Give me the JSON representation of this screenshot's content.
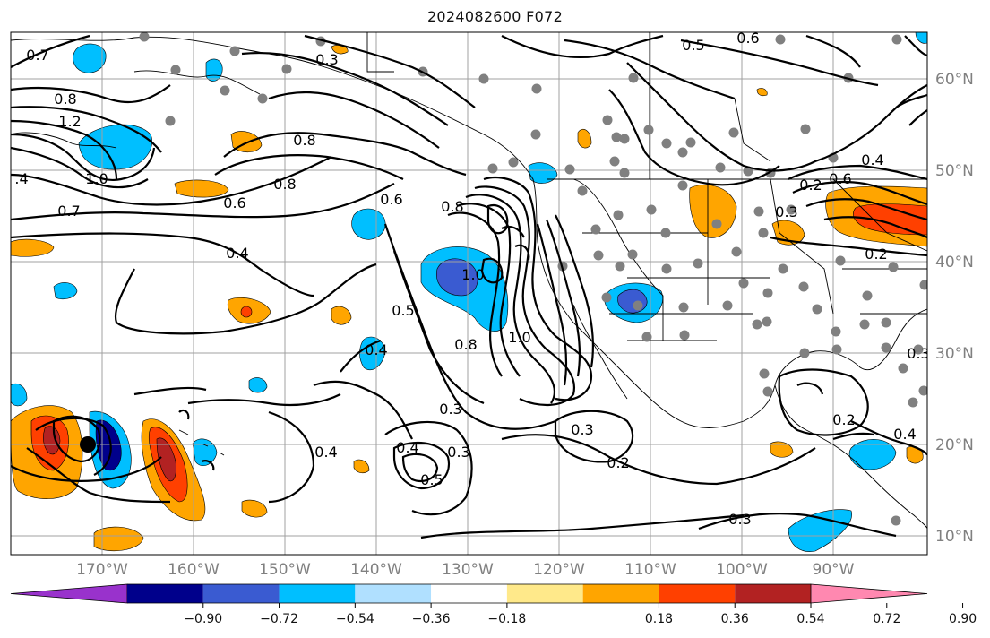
{
  "title": "2024082600 F072",
  "lat_labels": [
    "60°N",
    "50°N",
    "40°N",
    "30°N",
    "20°N",
    "10°N"
  ],
  "lon_labels": [
    "170°W",
    "160°W",
    "150°W",
    "140°W",
    "130°W",
    "120°W",
    "110°W",
    "100°W",
    "90°W"
  ],
  "contour_labels": [
    "0.3",
    "0.7",
    "0.8",
    "1.2",
    "1.0",
    ".4",
    "0.7",
    "0.8",
    "0.6",
    "0.8",
    "0.4",
    "0.6",
    "0.8",
    "0.5",
    "0.4",
    "1.0",
    "0.8",
    "1.0",
    "0.3",
    "0.4",
    "0.5",
    "0.3",
    "0.4",
    "0.3",
    "0.2",
    "0.3",
    "0.2",
    "0.4",
    "0.6",
    "0.2",
    "0.3",
    "0.2",
    "0.5",
    "0.6",
    "0.4",
    "0.3"
  ],
  "colorbar": {
    "ticks": [
      "−0.90",
      "−0.72",
      "−0.54",
      "−0.36",
      "−0.18",
      "0.18",
      "0.36",
      "0.54",
      "0.72",
      "0.90"
    ],
    "colors": [
      "#9932cc",
      "#00008b",
      "#3a5bd1",
      "#00bfff",
      "#b0e0ff",
      "#ffffff",
      "#ffe98a",
      "#ffa500",
      "#ff4000",
      "#b22222",
      "#ff88b0"
    ]
  }
}
